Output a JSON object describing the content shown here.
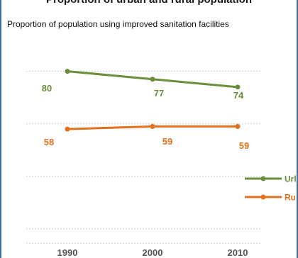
{
  "chart_data": {
    "type": "line",
    "title": "Proportion of urban and rural population",
    "subtitle": "Proportion of population using improved sanitation facilities",
    "x": [
      "1990",
      "2000",
      "2010"
    ],
    "series": [
      {
        "name": "Urban",
        "values": [
          80,
          77,
          74
        ],
        "color": "#6a8e3a"
      },
      {
        "name": "Rural",
        "values": [
          58,
          59,
          59
        ],
        "color": "#e2711d"
      }
    ],
    "ylim": [
      0,
      100
    ],
    "grid": true,
    "legend_position": "right",
    "legend_visible_text": [
      "Url",
      "Ru"
    ],
    "xlabel": "",
    "ylabel": ""
  }
}
